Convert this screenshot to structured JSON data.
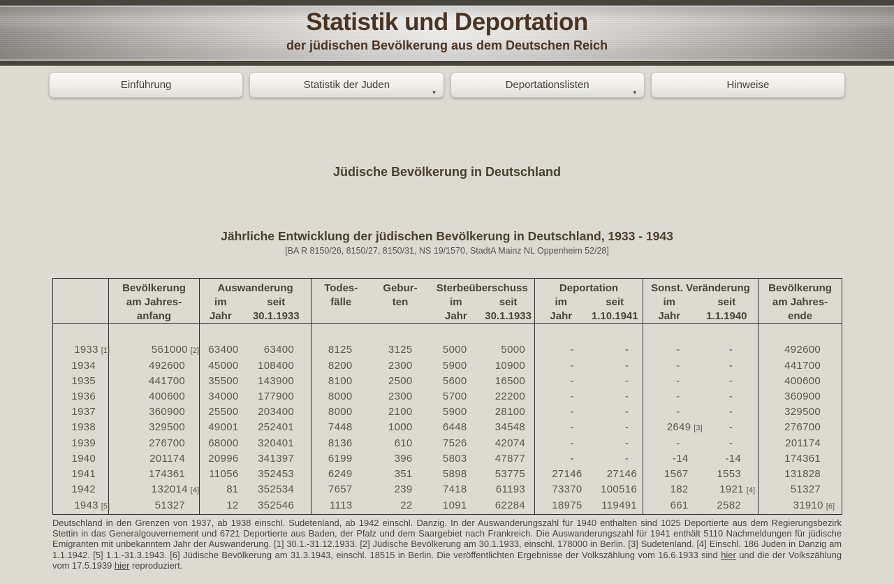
{
  "header": {
    "title": "Statistik und Deportation",
    "subtitle": "der jüdischen Bevölkerung aus dem Deutschen Reich"
  },
  "nav": {
    "items": [
      {
        "label": "Einführung",
        "has_dropdown": false
      },
      {
        "label": "Statistik der Juden",
        "has_dropdown": true
      },
      {
        "label": "Deportationslisten",
        "has_dropdown": true
      },
      {
        "label": "Hinweise",
        "has_dropdown": false
      }
    ]
  },
  "page": {
    "section_title": "Jüdische Bevölkerung in Deutschland",
    "table_title": "Jährliche Entwicklung der jüdischen Bevölkerung in Deutschland, 1933 - 1943",
    "table_source": "[BA R 8150/26, 8150/27, 8150/31, NS 19/1570, StadtA Mainz NL Oppenheim 52/28]"
  },
  "table": {
    "headers": {
      "year": "",
      "pop_start": "Bevölkerung\nam Jahres-\nanfang",
      "auswanderung": "Auswanderung",
      "ausw_im": "im\nJahr",
      "ausw_seit": "seit\n30.1.1933",
      "todesfaelle": "Todes-\nfälle",
      "geburten": "Gebur-\nten",
      "sterbe": "Sterbeüberschuss",
      "sterbe_im": "im\nJahr",
      "sterbe_seit": "seit\n30.1.1933",
      "deportation": "Deportation",
      "dep_im": "im\nJahr",
      "dep_seit": "seit\n1.10.1941",
      "sonst": "Sonst. Veränderung",
      "sonst_im": "im\nJahr",
      "sonst_seit": "seit\n1.1.1940",
      "pop_end": "Bevölkerung\nam Jahres-\nende"
    },
    "rows": [
      [
        "1933 [1]",
        "561000 [2]",
        "63400",
        "63400",
        "8125",
        "3125",
        "5000",
        "5000",
        "-",
        "-",
        "-",
        "-",
        "492600"
      ],
      [
        "1934",
        "492600",
        "45000",
        "108400",
        "8200",
        "2300",
        "5900",
        "10900",
        "-",
        "-",
        "-",
        "-",
        "441700"
      ],
      [
        "1935",
        "441700",
        "35500",
        "143900",
        "8100",
        "2500",
        "5600",
        "16500",
        "-",
        "-",
        "-",
        "-",
        "400600"
      ],
      [
        "1936",
        "400600",
        "34000",
        "177900",
        "8000",
        "2300",
        "5700",
        "22200",
        "-",
        "-",
        "-",
        "-",
        "360900"
      ],
      [
        "1937",
        "360900",
        "25500",
        "203400",
        "8000",
        "2100",
        "5900",
        "28100",
        "-",
        "-",
        "-",
        "-",
        "329500"
      ],
      [
        "1938",
        "329500",
        "49001",
        "252401",
        "7448",
        "1000",
        "6448",
        "34548",
        "-",
        "-",
        "2649 [3]",
        "-",
        "276700"
      ],
      [
        "1939",
        "276700",
        "68000",
        "320401",
        "8136",
        "610",
        "7526",
        "42074",
        "-",
        "-",
        "-",
        "-",
        "201174"
      ],
      [
        "1940",
        "201174",
        "20996",
        "341397",
        "6199",
        "396",
        "5803",
        "47877",
        "-",
        "-",
        "-14",
        "-14",
        "174361"
      ],
      [
        "1941",
        "174361",
        "11056",
        "352453",
        "6249",
        "351",
        "5898",
        "53775",
        "27146",
        "27146",
        "1567",
        "1553",
        "131828"
      ],
      [
        "1942",
        "132014 [4]",
        "81",
        "352534",
        "7657",
        "239",
        "7418",
        "61193",
        "73370",
        "100516",
        "182",
        "1921 [4]",
        "51327"
      ],
      [
        "1943 [5]",
        "51327",
        "12",
        "352546",
        "1113",
        "22",
        "1091",
        "62284",
        "18975",
        "119491",
        "661",
        "2582",
        "31910 [6]"
      ]
    ]
  },
  "footnote": {
    "part1": "Deutschland in den Grenzen von 1937, ab 1938 einschl. Sudetenland, ab 1942 einschl. Danzig. In der Auswanderungszahl für 1940 enthalten sind 1025 Deportierte aus dem Regierungsbezirk Stettin in das Generalgouvernement und 6721 Deportierte aus Baden, der Pfalz und dem Saargebiet nach Frankreich. Die Auswanderungszahl für 1941 enthält 5110 Nachmeldungen für jüdische Emigranten mit unbekanntem Jahr der Auswanderung. [1] 30.1.-31.12.1933. [2] Jüdische Bevölkerung am 30.1.1933, einschl. 178000 in Berlin. [3] Sudetenland. [4] Einschl. 186 Juden in Danzig am 1.1.1942. [5] 1.1.-31.3.1943. [6] Jüdische Bevölkerung am 31.3.1943, einschl. 18515 in Berlin. Die veröffentlichten Ergebnisse der Volkszählung vom 16.6.1933 sind ",
    "link1": "hier",
    "part2": " und die der Volkszählung vom 17.5.1939 ",
    "link2": "hier",
    "part3": " reproduziert."
  },
  "colors": {
    "title_brown": "#4a3424",
    "page_bg": "#dcdad1",
    "band_olive": "#46453c",
    "table_border": "#33302a"
  }
}
